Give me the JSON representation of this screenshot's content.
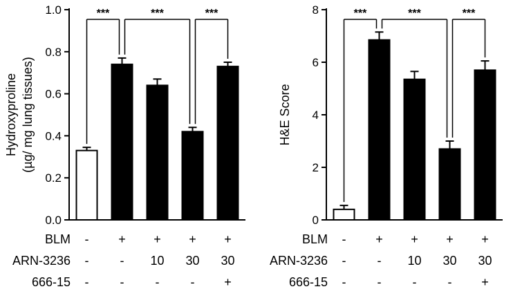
{
  "figure": {
    "background": "#ffffff",
    "axis_color": "#000000"
  },
  "chart_data": [
    {
      "type": "bar",
      "name": "hydroxyproline",
      "title": "",
      "ylabel_lines": [
        "Hydroxyproline",
        "(µg/ mg lung tissues)"
      ],
      "ylim": [
        0,
        1.0
      ],
      "yticks": [
        0.0,
        0.2,
        0.4,
        0.6,
        0.8,
        1.0
      ],
      "ytick_labels": [
        "0.0",
        "0.2",
        "0.4",
        "0.6",
        "0.8",
        "1.0"
      ],
      "categories": [
        "BLM -",
        "BLM +",
        "BLM + ARN-3236 10",
        "BLM + ARN-3236 30",
        "BLM + ARN-3236 30 + 666-15"
      ],
      "values": [
        0.33,
        0.74,
        0.64,
        0.42,
        0.73
      ],
      "errors": [
        0.015,
        0.03,
        0.03,
        0.02,
        0.02
      ],
      "bar_fills": [
        "#ffffff",
        "#000000",
        "#000000",
        "#000000",
        "#000000"
      ],
      "grid": false,
      "legend": "none",
      "significance": [
        {
          "from": 0,
          "to": 1,
          "label": "***"
        },
        {
          "from": 1,
          "to": 3,
          "label": "***"
        },
        {
          "from": 3,
          "to": 4,
          "label": "***"
        }
      ],
      "treatment_rows": [
        {
          "label": "BLM",
          "values": [
            "-",
            "+",
            "+",
            "+",
            "+"
          ]
        },
        {
          "label": "ARN-3236",
          "values": [
            "-",
            "-",
            "10",
            "30",
            "30"
          ]
        },
        {
          "label": "666-15",
          "values": [
            "-",
            "-",
            "-",
            "-",
            "+"
          ]
        }
      ]
    },
    {
      "type": "bar",
      "name": "he-score",
      "title": "",
      "ylabel_lines": [
        "H&E Score"
      ],
      "ylim": [
        0,
        8
      ],
      "yticks": [
        0,
        2,
        4,
        6,
        8
      ],
      "ytick_labels": [
        "0",
        "2",
        "4",
        "6",
        "8"
      ],
      "categories": [
        "BLM -",
        "BLM +",
        "BLM + ARN-3236 10",
        "BLM + ARN-3236 30",
        "BLM + ARN-3236 30 + 666-15"
      ],
      "values": [
        0.4,
        6.85,
        5.35,
        2.7,
        5.7
      ],
      "errors": [
        0.15,
        0.3,
        0.3,
        0.3,
        0.35
      ],
      "bar_fills": [
        "#ffffff",
        "#000000",
        "#000000",
        "#000000",
        "#000000"
      ],
      "grid": false,
      "legend": "none",
      "significance": [
        {
          "from": 0,
          "to": 1,
          "label": "***"
        },
        {
          "from": 1,
          "to": 3,
          "label": "***"
        },
        {
          "from": 3,
          "to": 4,
          "label": "***"
        }
      ],
      "treatment_rows": [
        {
          "label": "BLM",
          "values": [
            "-",
            "+",
            "+",
            "+",
            "+"
          ]
        },
        {
          "label": "ARN-3236",
          "values": [
            "-",
            "-",
            "10",
            "30",
            "30"
          ]
        },
        {
          "label": "666-15",
          "values": [
            "-",
            "-",
            "-",
            "-",
            "+"
          ]
        }
      ]
    }
  ]
}
